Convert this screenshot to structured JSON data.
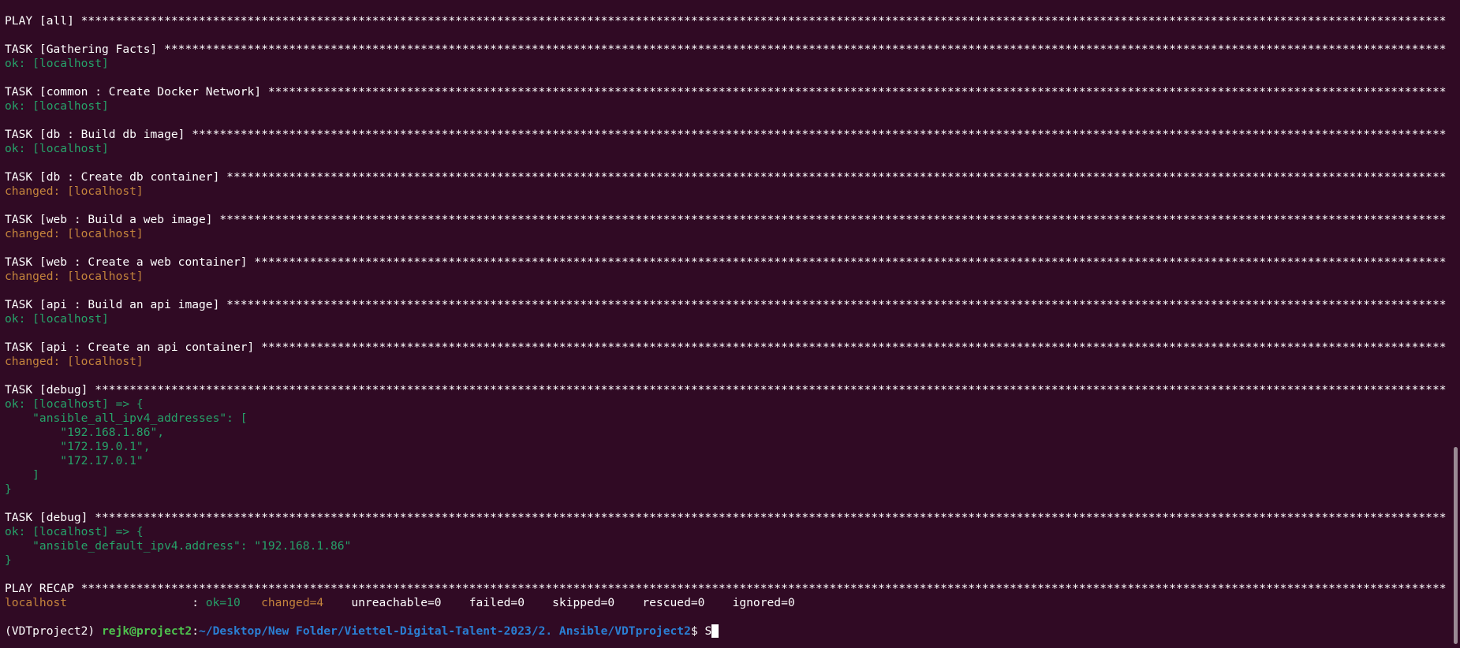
{
  "terminal": {
    "lines": [
      {
        "segments": [
          {
            "text": "PLAY [all] *****************************************************************************************************************************************************************************************************************************",
            "color": "white"
          }
        ]
      },
      {
        "segments": []
      },
      {
        "segments": [
          {
            "text": "TASK [Gathering Facts] *****************************************************************************************************************************************************************************************************",
            "color": "white"
          }
        ]
      },
      {
        "segments": [
          {
            "text": "ok: [localhost]",
            "color": "green"
          }
        ]
      },
      {
        "segments": []
      },
      {
        "segments": [
          {
            "text": "TASK [common : Create Docker Network] ******************************************************************************************************************************************************************************************",
            "color": "white"
          }
        ]
      },
      {
        "segments": [
          {
            "text": "ok: [localhost]",
            "color": "green"
          }
        ]
      },
      {
        "segments": []
      },
      {
        "segments": [
          {
            "text": "TASK [db : Build db image] *************************************************************************************************************************************************************************************************",
            "color": "white"
          }
        ]
      },
      {
        "segments": [
          {
            "text": "ok: [localhost]",
            "color": "green"
          }
        ]
      },
      {
        "segments": []
      },
      {
        "segments": [
          {
            "text": "TASK [db : Create db container] ********************************************************************************************************************************************************************************************",
            "color": "white"
          }
        ]
      },
      {
        "segments": [
          {
            "text": "changed: [localhost]",
            "color": "orange"
          }
        ]
      },
      {
        "segments": []
      },
      {
        "segments": [
          {
            "text": "TASK [web : Build a web image] *********************************************************************************************************************************************************************************************",
            "color": "white"
          }
        ]
      },
      {
        "segments": [
          {
            "text": "changed: [localhost]",
            "color": "orange"
          }
        ]
      },
      {
        "segments": []
      },
      {
        "segments": [
          {
            "text": "TASK [web : Create a web container] ****************************************************************************************************************************************************************************************",
            "color": "white"
          }
        ]
      },
      {
        "segments": [
          {
            "text": "changed: [localhost]",
            "color": "orange"
          }
        ]
      },
      {
        "segments": []
      },
      {
        "segments": [
          {
            "text": "TASK [api : Build an api image] ********************************************************************************************************************************************************************************************",
            "color": "white"
          }
        ]
      },
      {
        "segments": [
          {
            "text": "ok: [localhost]",
            "color": "green"
          }
        ]
      },
      {
        "segments": []
      },
      {
        "segments": [
          {
            "text": "TASK [api : Create an api container] ***************************************************************************************************************************************************************************************",
            "color": "white"
          }
        ]
      },
      {
        "segments": [
          {
            "text": "changed: [localhost]",
            "color": "orange"
          }
        ]
      },
      {
        "segments": []
      },
      {
        "segments": [
          {
            "text": "TASK [debug] *******************************************************************************************************************************************************************************************************************",
            "color": "white"
          }
        ]
      },
      {
        "segments": [
          {
            "text": "ok: [localhost] => {",
            "color": "green"
          }
        ]
      },
      {
        "segments": [
          {
            "text": "    \"ansible_all_ipv4_addresses\": [",
            "color": "green"
          }
        ]
      },
      {
        "segments": [
          {
            "text": "        \"192.168.1.86\",",
            "color": "green"
          }
        ]
      },
      {
        "segments": [
          {
            "text": "        \"172.19.0.1\",",
            "color": "green"
          }
        ]
      },
      {
        "segments": [
          {
            "text": "        \"172.17.0.1\"",
            "color": "green"
          }
        ]
      },
      {
        "segments": [
          {
            "text": "    ]",
            "color": "green"
          }
        ]
      },
      {
        "segments": [
          {
            "text": "}",
            "color": "green"
          }
        ]
      },
      {
        "segments": []
      },
      {
        "segments": [
          {
            "text": "TASK [debug] *******************************************************************************************************************************************************************************************************************",
            "color": "white"
          }
        ]
      },
      {
        "segments": [
          {
            "text": "ok: [localhost] => {",
            "color": "green"
          }
        ]
      },
      {
        "segments": [
          {
            "text": "    \"ansible_default_ipv4.address\": \"192.168.1.86\"",
            "color": "green"
          }
        ]
      },
      {
        "segments": [
          {
            "text": "}",
            "color": "green"
          }
        ]
      },
      {
        "segments": []
      },
      {
        "segments": [
          {
            "text": "PLAY RECAP *****************************************************************************************************************************************************************************************************************",
            "color": "white"
          }
        ]
      },
      {
        "segments": [
          {
            "text": "localhost                  ",
            "color": "orange"
          },
          {
            "text": ": ",
            "color": "white"
          },
          {
            "text": "ok=10",
            "color": "green"
          },
          {
            "text": "   ",
            "color": "white"
          },
          {
            "text": "changed=4",
            "color": "orange"
          },
          {
            "text": "    unreachable=0    failed=0    skipped=0    rescued=0    ignored=0",
            "color": "white"
          }
        ]
      },
      {
        "segments": []
      }
    ],
    "prompt": {
      "venv": "(VDTproject2) ",
      "user_host": "rejk@project2",
      "separator": ":",
      "path": "~/Desktop/New Folder/Viettel-Digital-Talent-2023/2. Ansible/VDTproject2",
      "symbol": "$ ",
      "input": "S"
    }
  }
}
